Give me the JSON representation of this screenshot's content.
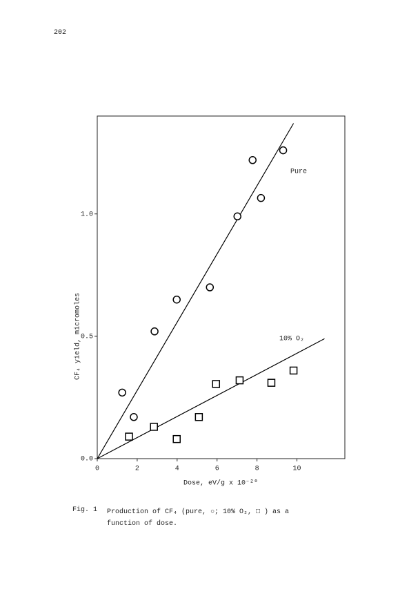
{
  "page_number": "202",
  "chart_data": {
    "type": "scatter",
    "x_label": "Dose, eV/g x 10⁻²⁰",
    "y_label": "CF₄ yield, micromoles",
    "xlim": [
      0,
      12.4
    ],
    "ylim": [
      0,
      1.4
    ],
    "xticks": [
      0,
      2,
      4,
      6,
      8,
      10
    ],
    "yticks": [
      {
        "value": 0,
        "label": "0.0"
      },
      {
        "value": 0.5,
        "label": "0.5"
      },
      {
        "value": 1,
        "label": "1.0"
      }
    ],
    "series": [
      {
        "name": "Pure",
        "marker": "circle",
        "color": "#000000",
        "x": [
          1.25,
          1.83,
          2.87,
          3.98,
          5.64,
          7.02,
          7.78,
          8.2,
          9.31
        ],
        "values": [
          0.27,
          0.17,
          0.52,
          0.65,
          0.7,
          0.99,
          1.22,
          1.065,
          1.26
        ],
        "fit": {
          "x": [
            0,
            9.83
          ],
          "values": [
            0,
            1.37
          ]
        }
      },
      {
        "name": "10% O₂",
        "marker": "square",
        "color": "#000000",
        "x": [
          1.59,
          2.84,
          3.98,
          5.09,
          5.95,
          7.13,
          8.72,
          9.83
        ],
        "values": [
          0.09,
          0.13,
          0.08,
          0.17,
          0.305,
          0.32,
          0.31,
          0.36
        ],
        "fit": {
          "x": [
            0,
            11.38
          ],
          "values": [
            0,
            0.49
          ]
        }
      }
    ]
  },
  "caption": {
    "label": "Fig. 1",
    "text": "Production of CF₄ (pure, ○; 10% O₂, □ ) as a function of dose."
  }
}
